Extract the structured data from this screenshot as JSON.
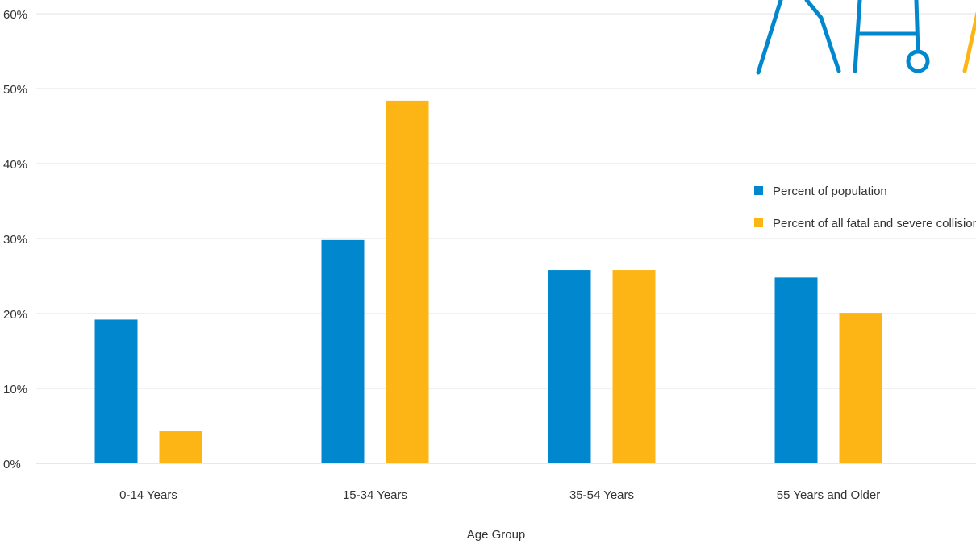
{
  "chart_data": {
    "type": "bar",
    "title": "",
    "xlabel": "Age Group",
    "ylabel": "",
    "ylim": [
      0,
      60
    ],
    "yticks": [
      0,
      10,
      20,
      30,
      40,
      50,
      60
    ],
    "ytick_labels": [
      "0%",
      "10%",
      "20%",
      "30%",
      "40%",
      "50%",
      "60%"
    ],
    "grid": true,
    "legend_position": "right",
    "categories": [
      "0-14 Years",
      "15-34 Years",
      "35-54 Years",
      "55 Years and Older"
    ],
    "series": [
      {
        "name": "Percent of population",
        "color": "#0087CD",
        "values": [
          19.2,
          29.8,
          25.8,
          24.8
        ]
      },
      {
        "name": "Percent of all fatal and severe collisions",
        "color": "#FDB515",
        "values": [
          4.3,
          48.4,
          25.8,
          20.1
        ]
      }
    ]
  },
  "decoration": {
    "icon": "pedestrian-walker-icon",
    "colors": [
      "#0087CD",
      "#FDB515"
    ]
  }
}
